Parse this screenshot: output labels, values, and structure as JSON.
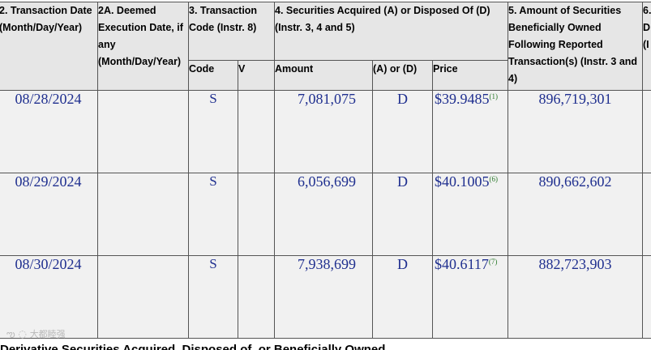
{
  "table": {
    "headers": {
      "col2": "2. Transaction Date (Month/Day/Year)",
      "col2a": "2A. Deemed Execution Date, if any (Month/Day/Year)",
      "col3": "3. Transaction Code (Instr. 8)",
      "col4": "4. Securities Acquired (A) or Disposed Of (D) (Instr. 3, 4 and 5)",
      "col5": "5. Amount of Securities Beneficially Owned Following Reported Transaction(s) (Instr. 3 and 4)",
      "col6_partial": "6.\nD\n(I"
    },
    "subheaders": {
      "code": "Code",
      "v": "V",
      "amount": "Amount",
      "a_or_d": "(A) or (D)",
      "price": "Price"
    },
    "rows": [
      {
        "date": "08/28/2024",
        "deemed": "",
        "code": "S",
        "v": "",
        "amount": "7,081,075",
        "a_or_d": "D",
        "price": "$39.9485",
        "footnote": "(1)",
        "owned": "896,719,301"
      },
      {
        "date": "08/29/2024",
        "deemed": "",
        "code": "S",
        "v": "",
        "amount": "6,056,699",
        "a_or_d": "D",
        "price": "$40.1005",
        "footnote": "(6)",
        "owned": "890,662,602"
      },
      {
        "date": "08/30/2024",
        "deemed": "",
        "code": "S",
        "v": "",
        "amount": "7,938,699",
        "a_or_d": "D",
        "price": "$40.6117",
        "footnote": "(7)",
        "owned": "882,723,903"
      }
    ]
  },
  "next_section_title": "Derivative Securities Acquired, Disposed of, or Beneficially Owned",
  "watermark": "大都睦强"
}
